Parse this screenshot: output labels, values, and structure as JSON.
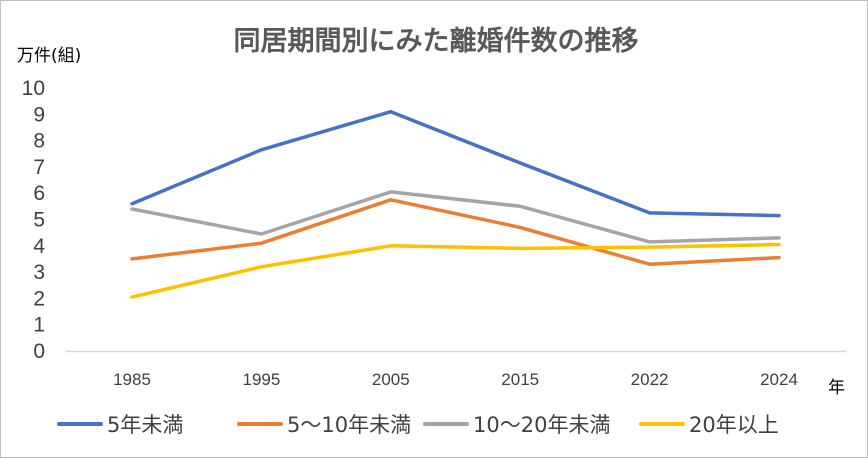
{
  "chart_data": {
    "type": "line",
    "title": "同居期間別にみた離婚件数の推移",
    "ylabel": "万件(組)",
    "xlabel": "年",
    "categories": [
      "1985",
      "1995",
      "2005",
      "2015",
      "2022",
      "2024"
    ],
    "ylim": [
      0,
      10
    ],
    "yticks": [
      "0",
      "1",
      "2",
      "3",
      "4",
      "5",
      "6",
      "7",
      "8",
      "9",
      "10"
    ],
    "grid": false,
    "legend_position": "bottom",
    "series": [
      {
        "name": "5年未満",
        "color": "#4472C4",
        "values": [
          5.6,
          7.65,
          9.1,
          7.15,
          5.25,
          5.15
        ]
      },
      {
        "name": "5～10年未満",
        "color": "#ED7D31",
        "values": [
          3.5,
          4.1,
          5.75,
          4.7,
          3.3,
          3.55
        ]
      },
      {
        "name": "10～20年未満",
        "color": "#A5A5A5",
        "values": [
          5.4,
          4.45,
          6.05,
          5.5,
          4.15,
          4.3
        ]
      },
      {
        "name": "20年以上",
        "color": "#FFC000",
        "values": [
          2.05,
          3.2,
          4.0,
          3.9,
          3.95,
          4.05
        ]
      }
    ]
  }
}
